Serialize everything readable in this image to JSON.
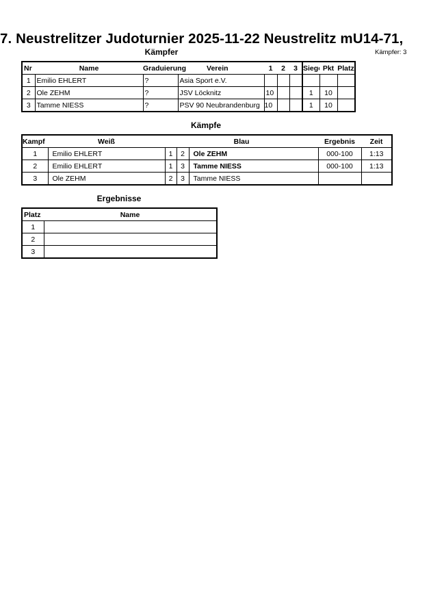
{
  "title": "7. Neustrelitzer Judoturnier  2025-11-22  Neustrelitz   mU14-71,",
  "fighters": {
    "heading": "Kämpfer",
    "count_label": "Kämpfer: 3",
    "columns": [
      "Nr",
      "Name",
      "Graduierung",
      "Verein",
      "1",
      "2",
      "3",
      "Siege",
      "Pkt",
      "Platz"
    ],
    "rows": [
      {
        "nr": "1",
        "name": "Emilio EHLERT",
        "grad": "?",
        "club": "Asia Sport e.V.",
        "s1": "",
        "s2": "",
        "s3": "",
        "wins": "",
        "pts": "",
        "place": ""
      },
      {
        "nr": "2",
        "name": "Ole ZEHM",
        "grad": "?",
        "club": "JSV Löcknitz",
        "s1": "10",
        "s2": "",
        "s3": "",
        "wins": "1",
        "pts": "10",
        "place": ""
      },
      {
        "nr": "3",
        "name": "Tamme NIESS",
        "grad": "?",
        "club": "PSV 90 Neubrandenburg",
        "s1": "10",
        "s2": "",
        "s3": "",
        "wins": "1",
        "pts": "10",
        "place": ""
      }
    ]
  },
  "fights": {
    "heading": "Kämpfe",
    "columns": [
      "Kampf",
      "Weiß",
      "Blau",
      "Ergebnis",
      "Zeit"
    ],
    "rows": [
      {
        "no": "1",
        "white": "Emilio EHLERT",
        "wn": "1",
        "bn": "2",
        "blue": "Ole ZEHM",
        "result": "000-100",
        "time": "1:13"
      },
      {
        "no": "2",
        "white": "Emilio EHLERT",
        "wn": "1",
        "bn": "3",
        "blue": "Tamme NIESS",
        "result": "000-100",
        "time": "1:13"
      },
      {
        "no": "3",
        "white": "Ole ZEHM",
        "wn": "2",
        "bn": "3",
        "blue": "Tamme NIESS",
        "result": "",
        "time": ""
      }
    ]
  },
  "results": {
    "heading": "Ergebnisse",
    "columns": [
      "Platz",
      "Name"
    ],
    "rows": [
      {
        "place": "1",
        "name": ""
      },
      {
        "place": "2",
        "name": ""
      },
      {
        "place": "3",
        "name": ""
      }
    ]
  }
}
